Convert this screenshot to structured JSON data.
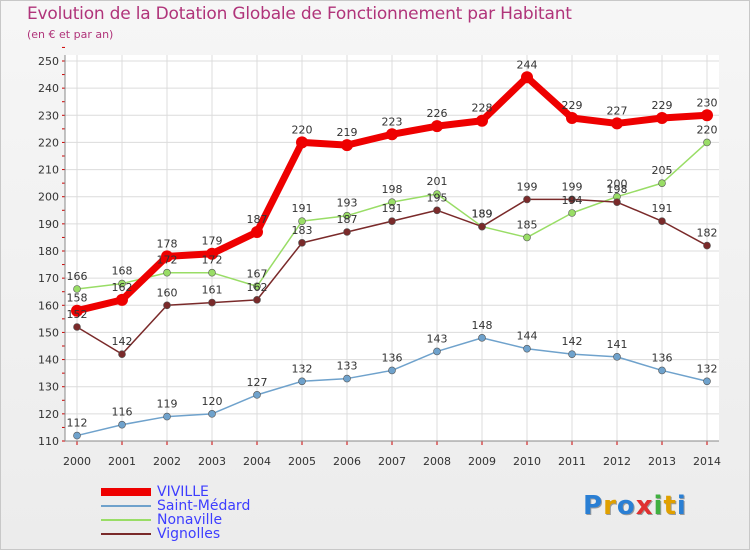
{
  "title": "Evolution de la Dotation Globale de Fonctionnement par Habitant",
  "subtitle": "(en € et par an)",
  "logo": "Proxiti",
  "colors": {
    "title": "#b0347a",
    "legend_text": "#3d3dff"
  },
  "chart_data": {
    "type": "line",
    "x": [
      2000,
      2001,
      2002,
      2003,
      2004,
      2005,
      2006,
      2007,
      2008,
      2009,
      2010,
      2011,
      2012,
      2013,
      2014
    ],
    "ylim": [
      110,
      250
    ],
    "yticks": [
      110,
      120,
      130,
      140,
      150,
      160,
      170,
      180,
      190,
      200,
      210,
      220,
      230,
      240,
      250
    ],
    "grid": true,
    "legend_position": "bottom-left",
    "series": [
      {
        "name": "VIVILLE",
        "color": "#ee0000",
        "values": [
          158,
          162,
          178,
          179,
          187,
          220,
          219,
          223,
          226,
          228,
          244,
          229,
          227,
          229,
          230
        ]
      },
      {
        "name": "Saint-Médard",
        "color": "#6fa2cc",
        "values": [
          112,
          116,
          119,
          120,
          127,
          132,
          133,
          136,
          143,
          148,
          144,
          142,
          141,
          136,
          132
        ]
      },
      {
        "name": "Nonaville",
        "color": "#99dd66",
        "values": [
          166,
          168,
          172,
          172,
          167,
          191,
          193,
          198,
          201,
          189,
          185,
          194,
          200,
          205,
          220
        ]
      },
      {
        "name": "Vignolles",
        "color": "#7a2a2a",
        "values": [
          152,
          142,
          160,
          161,
          162,
          183,
          187,
          191,
          195,
          189,
          199,
          199,
          198,
          191,
          182
        ]
      }
    ]
  }
}
